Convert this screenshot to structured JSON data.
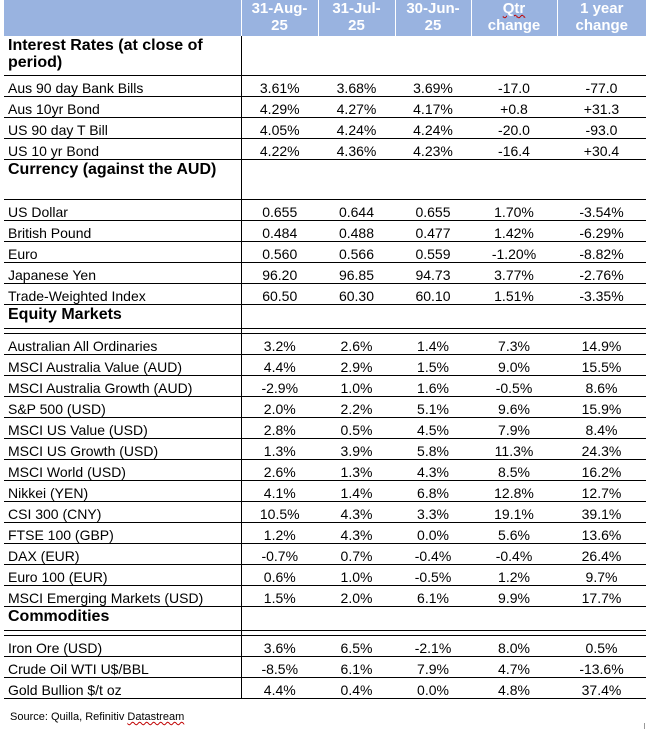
{
  "header": {
    "col1": "31-Aug-\n25",
    "col2": "31-Jul-\n25",
    "col3": "30-Jun-\n25",
    "col4_word1": "Qtr",
    "col4_word2": "change",
    "col5": "1 year\nchange"
  },
  "sections": [
    {
      "title": "Interest Rates (at close of period)",
      "rows": [
        {
          "label": "Aus 90 day Bank Bills",
          "values": [
            "3.61%",
            "3.68%",
            "3.69%",
            "-17.0",
            "-77.0"
          ]
        },
        {
          "label": "Aus 10yr Bond",
          "values": [
            "4.29%",
            "4.27%",
            "4.17%",
            "+0.8",
            "+31.3"
          ]
        },
        {
          "label": "US 90 day T Bill",
          "values": [
            "4.05%",
            "4.24%",
            "4.24%",
            "-20.0",
            "-93.0"
          ]
        },
        {
          "label": "US 10 yr Bond",
          "values": [
            "4.22%",
            "4.36%",
            "4.23%",
            "-16.4",
            "+30.4"
          ]
        }
      ]
    },
    {
      "title": "Currency (against the AUD)",
      "rows": [
        {
          "label": "US Dollar",
          "values": [
            "0.655",
            "0.644",
            "0.655",
            "1.70%",
            "-3.54%"
          ]
        },
        {
          "label": "British Pound",
          "values": [
            "0.484",
            "0.488",
            "0.477",
            "1.42%",
            "-6.29%"
          ]
        },
        {
          "label": "Euro",
          "values": [
            "0.560",
            "0.566",
            "0.559",
            "-1.20%",
            "-8.82%"
          ]
        },
        {
          "label": "Japanese Yen",
          "values": [
            "96.20",
            "96.85",
            "94.73",
            "3.77%",
            "-2.76%"
          ]
        },
        {
          "label": "Trade-Weighted Index",
          "values": [
            "60.50",
            "60.30",
            "60.10",
            "1.51%",
            "-3.35%"
          ]
        }
      ]
    },
    {
      "title": "Equity Markets",
      "rows": [
        {
          "label": "Australian All Ordinaries",
          "values": [
            "3.2%",
            "2.6%",
            "1.4%",
            "7.3%",
            "14.9%"
          ]
        },
        {
          "label": "MSCI Australia Value (AUD)",
          "values": [
            "4.4%",
            "2.9%",
            "1.5%",
            "9.0%",
            "15.5%"
          ]
        },
        {
          "label": "MSCI Australia Growth (AUD)",
          "values": [
            "-2.9%",
            "1.0%",
            "1.6%",
            "-0.5%",
            "8.6%"
          ]
        },
        {
          "label": "S&P 500 (USD)",
          "values": [
            "2.0%",
            "2.2%",
            "5.1%",
            "9.6%",
            "15.9%"
          ]
        },
        {
          "label": "MSCI US Value (USD)",
          "values": [
            "2.8%",
            "0.5%",
            "4.5%",
            "7.9%",
            "8.4%"
          ]
        },
        {
          "label": "MSCI US Growth (USD)",
          "values": [
            "1.3%",
            "3.9%",
            "5.8%",
            "11.3%",
            "24.3%"
          ]
        },
        {
          "label": "MSCI World (USD)",
          "values": [
            "2.6%",
            "1.3%",
            "4.3%",
            "8.5%",
            "16.2%"
          ]
        },
        {
          "label": "Nikkei (YEN)",
          "values": [
            "4.1%",
            "1.4%",
            "6.8%",
            "12.8%",
            "12.7%"
          ]
        },
        {
          "label": "CSI 300 (CNY)",
          "values": [
            "10.5%",
            "4.3%",
            "3.3%",
            "19.1%",
            "39.1%"
          ]
        },
        {
          "label": "FTSE 100 (GBP)",
          "values": [
            "1.2%",
            "4.3%",
            "0.0%",
            "5.6%",
            "13.6%"
          ]
        },
        {
          "label": "DAX (EUR)",
          "values": [
            "-0.7%",
            "0.7%",
            "-0.4%",
            "-0.4%",
            "26.4%"
          ]
        },
        {
          "label": "Euro 100 (EUR)",
          "values": [
            "0.6%",
            "1.0%",
            "-0.5%",
            "1.2%",
            "9.7%"
          ]
        },
        {
          "label": "MSCI Emerging Markets (USD)",
          "values": [
            "1.5%",
            "2.0%",
            "6.1%",
            "9.9%",
            "17.7%"
          ]
        }
      ]
    },
    {
      "title": "Commodities",
      "rows": [
        {
          "label": "Iron Ore (USD)",
          "values": [
            "3.6%",
            "6.5%",
            "-2.1%",
            "8.0%",
            "0.5%"
          ]
        },
        {
          "label": "Crude Oil WTI U$/BBL",
          "values": [
            "-8.5%",
            "6.1%",
            "7.9%",
            "4.7%",
            "-13.6%"
          ]
        },
        {
          "label": "Gold Bullion $/t oz",
          "values": [
            "4.4%",
            "0.4%",
            "0.0%",
            "4.8%",
            "37.4%"
          ]
        }
      ]
    }
  ],
  "source": {
    "prefix": "Source: Quilla, Refinitiv ",
    "datastream": "Datastream"
  },
  "colors": {
    "header_bg": "#99b3e0",
    "header_text": "#ffffff",
    "spellcheck_underline": "#c00000"
  }
}
